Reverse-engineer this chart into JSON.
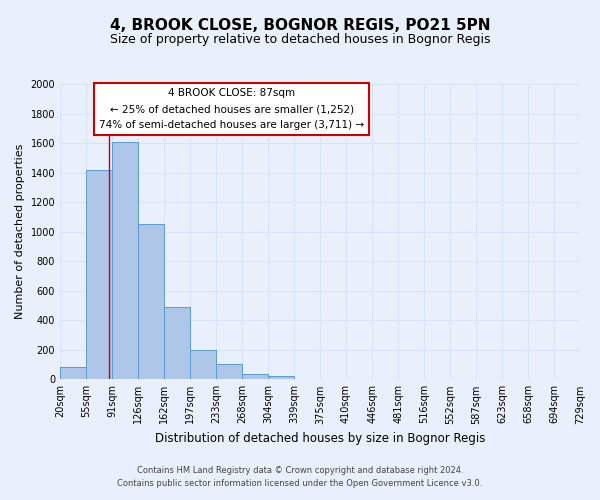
{
  "title": "4, BROOK CLOSE, BOGNOR REGIS, PO21 5PN",
  "subtitle": "Size of property relative to detached houses in Bognor Regis",
  "xlabel": "Distribution of detached houses by size in Bognor Regis",
  "ylabel": "Number of detached properties",
  "bar_edges": [
    20,
    55,
    91,
    126,
    162,
    197,
    233,
    268,
    304,
    339,
    375,
    410,
    446,
    481,
    516,
    552,
    587,
    623,
    658,
    694,
    729
  ],
  "bar_heights": [
    85,
    1415,
    1610,
    1050,
    490,
    200,
    105,
    35,
    20,
    0,
    0,
    0,
    0,
    0,
    0,
    0,
    0,
    0,
    0,
    0
  ],
  "bar_color": "#aec6e8",
  "bar_edgecolor": "#5b9bd5",
  "ylim": [
    0,
    2000
  ],
  "yticks": [
    0,
    200,
    400,
    600,
    800,
    1000,
    1200,
    1400,
    1600,
    1800,
    2000
  ],
  "vline_color": "#cc0000",
  "vline_x": 87,
  "annotation_title": "4 BROOK CLOSE: 87sqm",
  "annotation_line1": "← 25% of detached houses are smaller (1,252)",
  "annotation_line2": "74% of semi-detached houses are larger (3,711) →",
  "annotation_box_facecolor": "#ffffff",
  "annotation_box_edgecolor": "#cc0000",
  "footer_line1": "Contains HM Land Registry data © Crown copyright and database right 2024.",
  "footer_line2": "Contains public sector information licensed under the Open Government Licence v3.0.",
  "background_color": "#eaf0fb",
  "grid_color": "#d8e4f5",
  "title_fontsize": 11,
  "subtitle_fontsize": 9,
  "xlabel_fontsize": 8.5,
  "ylabel_fontsize": 8,
  "tick_fontsize": 7,
  "footer_fontsize": 6
}
